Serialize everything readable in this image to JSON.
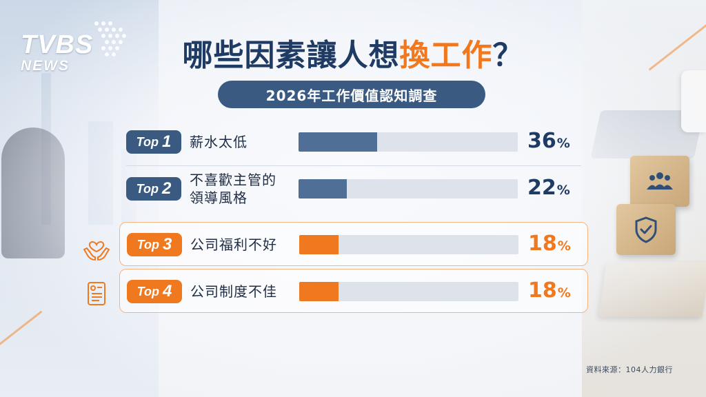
{
  "logo": {
    "brand": "TVBS",
    "sub": "NEWS"
  },
  "title": {
    "main": "哪些因素讓人想",
    "highlight": "換工作",
    "mark": "？"
  },
  "subtitle": "2026年工作價值認知調查",
  "chart_data": {
    "type": "bar",
    "orientation": "horizontal",
    "title": "哪些因素讓人想換工作？",
    "subtitle": "2026年工作價值認知調查",
    "xlim": [
      0,
      100
    ],
    "unit": "%",
    "categories": [
      "薪水太低",
      "不喜歡主管的\n領導風格",
      "公司福利不好",
      "公司制度不佳"
    ],
    "ranks": [
      "Top 1",
      "Top 2",
      "Top 3",
      "Top 4"
    ],
    "values": [
      36,
      22,
      18,
      18
    ],
    "bar_colors": [
      "#4f6f96",
      "#4f6f96",
      "#f0781e",
      "#f0781e"
    ],
    "track_color": "#dee3eb"
  },
  "rows": [
    {
      "rank_word": "Top",
      "rank_num": "1",
      "label": "薪水太低",
      "pct": "36",
      "unit": "%"
    },
    {
      "rank_word": "Top",
      "rank_num": "2",
      "label": "不喜歡主管的\n領導風格",
      "pct": "22",
      "unit": "%"
    },
    {
      "rank_word": "Top",
      "rank_num": "3",
      "label": "公司福利不好",
      "pct": "18",
      "unit": "%"
    },
    {
      "rank_word": "Top",
      "rank_num": "4",
      "label": "公司制度不佳",
      "pct": "18",
      "unit": "%"
    }
  ],
  "icons": {
    "row3": "heart-hands-icon",
    "row4": "document-icon",
    "cube1": "people-icon",
    "cube2": "shield-check-icon"
  },
  "colors": {
    "navy": "#1f3b63",
    "accent": "#f0781e",
    "badge_blue": "#3a5a82"
  },
  "source": "資料來源：104人力銀行"
}
